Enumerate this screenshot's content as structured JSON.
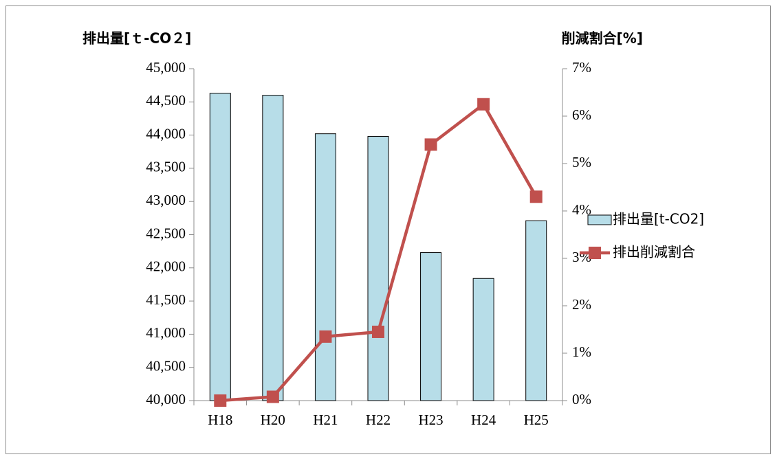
{
  "chart_data": {
    "type": "bar",
    "y_label": "排出量[ｔ-CO２]",
    "y2_label": "削減割合[%]",
    "categories": [
      "H18",
      "H20",
      "H21",
      "H22",
      "H23",
      "H24",
      "H25"
    ],
    "series": [
      {
        "name": "排出量[t-CO2]",
        "type": "bar",
        "color": "#b7dde8",
        "values": [
          44630,
          44600,
          44020,
          43980,
          42230,
          41840,
          42710
        ]
      },
      {
        "name": "排出削減割合",
        "type": "line",
        "axis": "y2",
        "color": "#c0504d",
        "values": [
          0.0,
          0.08,
          1.35,
          1.45,
          5.4,
          6.25,
          4.3
        ]
      }
    ],
    "ylim": [
      40000,
      45000
    ],
    "yticks": [
      {
        "value": 40000,
        "label": "40,000"
      },
      {
        "value": 40500,
        "label": "40,500"
      },
      {
        "value": 41000,
        "label": "41,000"
      },
      {
        "value": 41500,
        "label": "41,500"
      },
      {
        "value": 42000,
        "label": "42,000"
      },
      {
        "value": 42500,
        "label": "42,500"
      },
      {
        "value": 43000,
        "label": "43,000"
      },
      {
        "value": 43500,
        "label": "43,500"
      },
      {
        "value": 44000,
        "label": "44,000"
      },
      {
        "value": 44500,
        "label": "44,500"
      },
      {
        "value": 45000,
        "label": "45,000"
      }
    ],
    "y2lim": [
      0,
      7
    ],
    "y2ticks": [
      {
        "value": 0,
        "label": "0%"
      },
      {
        "value": 1,
        "label": "1%"
      },
      {
        "value": 2,
        "label": "2%"
      },
      {
        "value": 3,
        "label": "3%"
      },
      {
        "value": 4,
        "label": "4%"
      },
      {
        "value": 5,
        "label": "5%"
      },
      {
        "value": 6,
        "label": "6%"
      },
      {
        "value": 7,
        "label": "7%"
      }
    ],
    "legend": "right"
  }
}
